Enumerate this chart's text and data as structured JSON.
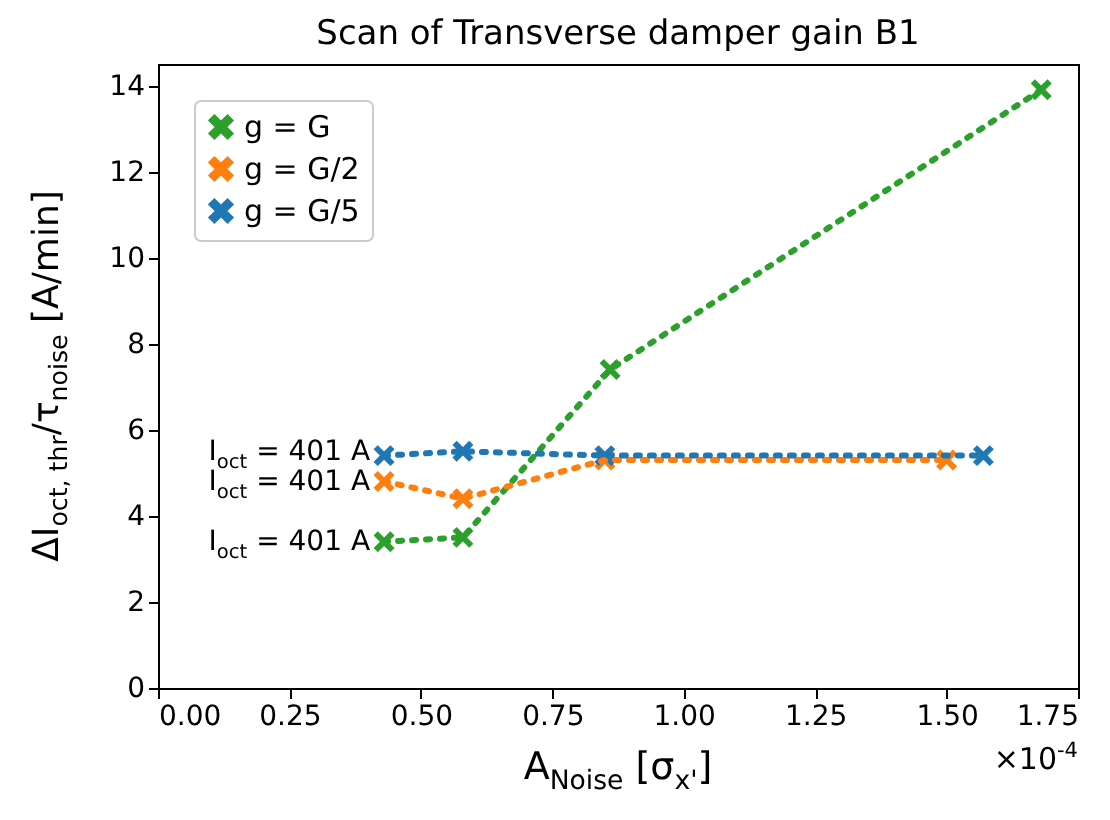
{
  "chart_data": {
    "type": "line",
    "title": "Scan of Transverse damper gain B1",
    "xlabel": "A$_{Noise}$ [σ$_{x'}$]",
    "ylabel": "ΔI$_{oct, thr}$/τ$_{noise}$ [A/min]",
    "series": [
      {
        "name": "g = G",
        "color": "#2ca02c",
        "x": [
          0.43,
          0.58,
          0.86,
          1.68
        ],
        "values": [
          3.4,
          3.5,
          7.4,
          13.9
        ]
      },
      {
        "name": "g = G/2",
        "color": "#ff7f0e",
        "x": [
          0.43,
          0.58,
          0.85,
          1.5
        ],
        "values": [
          4.8,
          4.4,
          5.3,
          5.3
        ]
      },
      {
        "name": "g = G/5",
        "color": "#1f77b4",
        "x": [
          0.43,
          0.58,
          0.85,
          1.57
        ],
        "values": [
          5.4,
          5.5,
          5.4,
          5.4
        ]
      }
    ],
    "xlim": [
      0,
      1.75
    ],
    "ylim": [
      0,
      14.5
    ],
    "xticks": [
      {
        "value": 0,
        "label": "0.00"
      },
      {
        "value": 0.25,
        "label": "0.25"
      },
      {
        "value": 0.5,
        "label": "0.50"
      },
      {
        "value": 0.75,
        "label": "0.75"
      },
      {
        "value": 1,
        "label": "1.00"
      },
      {
        "value": 1.25,
        "label": "1.25"
      },
      {
        "value": 1.5,
        "label": "1.50"
      },
      {
        "value": 1.75,
        "label": "1.75"
      }
    ],
    "yticks": [
      0,
      2,
      4,
      6,
      8,
      10,
      12,
      14
    ],
    "annotations": [
      "I$_{oct}$ = 401 A",
      "I$_{oct}$ = 401 A",
      "I$_{oct}$ = 401 A",
      "×10$^{-4}$"
    ],
    "legend": "top left",
    "marker": "cross",
    "line_style": "dotted",
    "grid": false
  }
}
